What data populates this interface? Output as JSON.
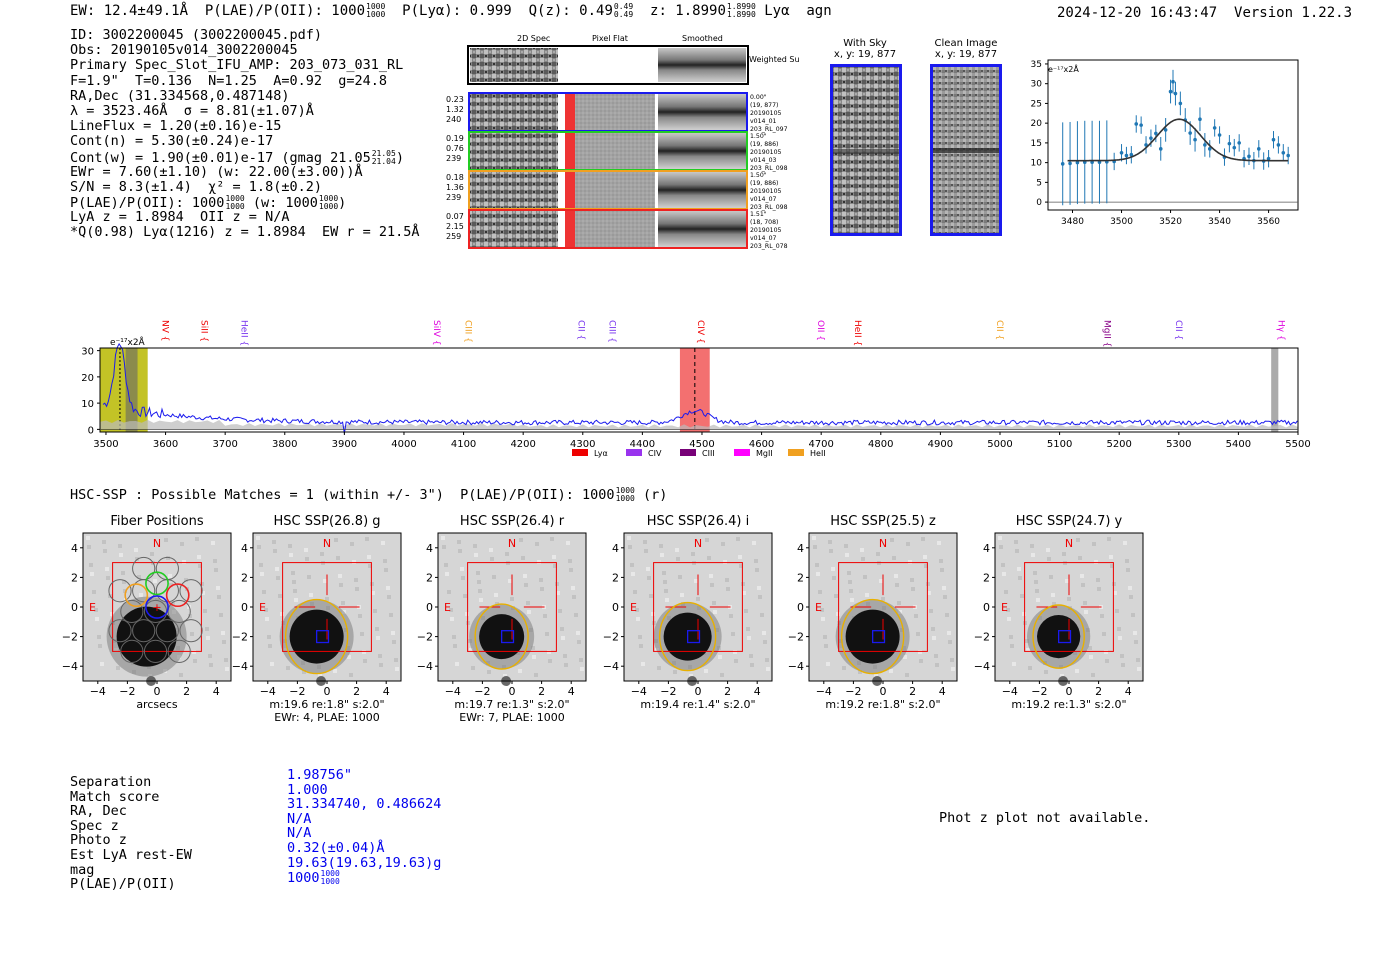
{
  "header": {
    "ew": "EW: 12.4±49.1Å",
    "plae_label": "P(LAE)/P(OII): 1000",
    "plae_hi": "1000",
    "plae_lo": "1000",
    "plya": "P(Lyα): 0.999",
    "qz": "Q(z): 0.49",
    "qz_hi": "0.49",
    "qz_lo": "0.49",
    "z": "z: 1.8990",
    "z_hi": "1.8990",
    "z_lo": "1.8990",
    "line": "Lyα",
    "cls": "agn",
    "timestamp": "2024-12-20 16:43:47",
    "version": "Version 1.22.3"
  },
  "info": {
    "id": "ID: 3002200045 (3002200045.pdf)",
    "obs": "Obs: 20190105v014_3002200045",
    "primary": "Primary Spec_Slot_IFU_AMP: 203_073_031_RL",
    "fit": "F=1.9\"  T=0.136  N=1.25  A=0.92  g=24.8",
    "radec": "RA,Dec (31.334568,0.487148)",
    "lambda": "λ = 3523.46Å  σ = 8.81(±1.07)Å",
    "lineflux": "LineFlux = 1.20(±0.16)e-15",
    "contn": "Cont(n) = 5.30(±0.24)e-17",
    "contw": "Cont(w) = 1.90(±0.01)e-17 (gmag 21.05",
    "contw_hi": "21.05",
    "contw_lo": "21.04",
    "ewr": "EWr = 7.60(±1.10) (w: 22.00(±3.00))Å",
    "sn": "S/N = 8.3(±1.4)  χ² = 1.8(±0.2)",
    "plae": "P(LAE)/P(OII): 1000",
    "plae_hi": "1000",
    "plae_lo": "1000",
    "plae_w": "(w: 1000",
    "plae_w_hi": "1000",
    "plae_w_lo": "1000",
    "lyaz": "LyA z = 1.8984  OII z = N/A",
    "qline": "*Q(0.98) Lyα(1216) z = 1.8984  EW r = 21.5Å"
  },
  "cutouts": {
    "col_headers": [
      "2D Spec",
      "Pixel Flat",
      "Smoothed"
    ],
    "weighted_sum": "Weighted Sum",
    "rows": [
      {
        "left": [
          "0.23",
          "1.32",
          "240"
        ],
        "right": [
          "0.00\"",
          "(19, 877)",
          "20190105",
          "v014_01",
          "203_RL_097"
        ],
        "color": "#1a1aee"
      },
      {
        "left": [
          "0.19",
          "0.76",
          "239"
        ],
        "right": [
          "1.50\"",
          "(19, 886)",
          "20190105",
          "v014_03",
          "203_RL_098"
        ],
        "color": "#22cc22"
      },
      {
        "left": [
          "0.18",
          "1.36",
          "239"
        ],
        "right": [
          "1.50\"",
          "(19, 886)",
          "20190105",
          "v014_07",
          "203_RL_098"
        ],
        "color": "#f0a020"
      },
      {
        "left": [
          "0.07",
          "2.15",
          "259"
        ],
        "right": [
          "1.51\"",
          "(18, 708)",
          "20190105",
          "v014_07",
          "203_RL_078"
        ],
        "color": "#ee2222"
      }
    ],
    "with_sky": "With Sky",
    "with_sky_xy": "x, y: 19, 877",
    "clean": "Clean Image",
    "clean_xy": "x, y: 19, 877"
  },
  "line_fit": {
    "unit": "e⁻¹⁷x2Å",
    "xlim": [
      3470,
      3572
    ],
    "ylim": [
      -2,
      36
    ],
    "xticks": [
      3480,
      3500,
      3520,
      3540,
      3560
    ],
    "yticks": [
      0,
      5,
      10,
      15,
      20,
      25,
      30,
      35
    ]
  },
  "chart_data": [
    {
      "type": "scatter",
      "x": [
        3476,
        3479,
        3482,
        3485,
        3488,
        3491,
        3494,
        3497,
        3500,
        3502,
        3504,
        3506,
        3508,
        3510,
        3512,
        3514,
        3516,
        3518,
        3520,
        3521,
        3522,
        3524,
        3526,
        3528,
        3530,
        3532,
        3534,
        3536,
        3538,
        3540,
        3542,
        3544,
        3546,
        3548,
        3550,
        3552,
        3554,
        3556,
        3558,
        3560,
        3562,
        3564,
        3566,
        3568
      ],
      "values": [
        9.7,
        9.8,
        10.0,
        10.1,
        10.1,
        10.1,
        10.2,
        10.3,
        12.5,
        11.8,
        12.0,
        19.8,
        19.5,
        14.5,
        16.2,
        17.4,
        13.5,
        18.3,
        28.0,
        30.5,
        27.5,
        25.0,
        20.8,
        17.5,
        15.8,
        21.0,
        14.5,
        13.5,
        18.8,
        17.0,
        11.4,
        14.8,
        13.8,
        15.0,
        11.0,
        11.6,
        10.5,
        13.5,
        10.4,
        11.0,
        15.8,
        14.5,
        12.5,
        11.8
      ],
      "model": {
        "continuum": 10.5,
        "center": 3523.46,
        "sigma": 8.81,
        "peak": 21.0
      },
      "xlim": [
        3470,
        3572
      ],
      "ylim": [
        -2,
        36
      ]
    },
    {
      "type": "line",
      "x_range": [
        3490,
        5500
      ],
      "xlim": [
        3490,
        5500
      ],
      "ylim": [
        -1,
        31
      ],
      "unit": "e⁻¹⁷x2Å",
      "xticks": [
        3500,
        3600,
        3700,
        3800,
        3900,
        4000,
        4100,
        4200,
        4300,
        4400,
        4500,
        4600,
        4700,
        4800,
        4900,
        5000,
        5100,
        5200,
        5300,
        5400,
        5500
      ],
      "yticks": [
        0,
        10,
        20,
        30
      ],
      "line_markers": [
        {
          "name": "NV",
          "x": 3590,
          "color": "#ee0000"
        },
        {
          "name": "SiII",
          "x": 3655,
          "color": "#ee0000"
        },
        {
          "name": "HeII",
          "x": 3722,
          "color": "#7733ee"
        },
        {
          "name": "SiIV",
          "x": 4045,
          "color": "#dd00dd"
        },
        {
          "name": "CIII",
          "x": 4098,
          "color": "#f0a020"
        },
        {
          "name": "CII",
          "x": 4288,
          "color": "#7733ee"
        },
        {
          "name": "CIII",
          "x": 4340,
          "color": "#7733ee"
        },
        {
          "name": "CIV",
          "x": 4488,
          "color": "#ee0000"
        },
        {
          "name": "OII",
          "x": 4690,
          "color": "#dd00dd"
        },
        {
          "name": "HeII",
          "x": 4752,
          "color": "#ee0000"
        },
        {
          "name": "CII",
          "x": 4990,
          "color": "#f0a020"
        },
        {
          "name": "MgII",
          "x": 5170,
          "color": "#880088"
        },
        {
          "name": "CII",
          "x": 5290,
          "color": "#7733ee"
        },
        {
          "name": "Hγ",
          "x": 5462,
          "color": "#dd00dd"
        }
      ],
      "legend": [
        {
          "name": "Lyα",
          "color": "#ee0000"
        },
        {
          "name": "CIV",
          "color": "#9933ee"
        },
        {
          "name": "CIII",
          "color": "#770077"
        },
        {
          "name": "MgII",
          "color": "#ff00ff"
        },
        {
          "name": "HeII",
          "color": "#f0a020"
        }
      ],
      "highlights": [
        {
          "range": [
            3490,
            3570
          ],
          "color": "#b8b800"
        },
        {
          "range": [
            4463,
            4513
          ],
          "color": "#ee3333"
        },
        {
          "range": [
            5455,
            5467
          ],
          "color": "#888888"
        }
      ]
    }
  ],
  "hsc": {
    "title": "HSC-SSP : Possible Matches = 1 (within +/- 3\")  P(LAE)/P(OII): 1000",
    "title_hi": "1000",
    "title_lo": "1000",
    "title_tail": "(r)",
    "stamps": [
      {
        "title": "Fiber Positions",
        "cap1": "arcsecs",
        "cap2": ""
      },
      {
        "title": "HSC SSP(26.8) g",
        "cap1": "m:19.6  re:1.8\"  s:2.0\"",
        "cap2": "EWr: 4, PLAE: 1000"
      },
      {
        "title": "HSC SSP(26.4) r",
        "cap1": "m:19.7  re:1.3\"  s:2.0\"",
        "cap2": "EWr: 7, PLAE: 1000"
      },
      {
        "title": "HSC SSP(26.4) i",
        "cap1": "m:19.4  re:1.4\"  s:2.0\"",
        "cap2": ""
      },
      {
        "title": "HSC SSP(25.5) z",
        "cap1": "m:19.2  re:1.8\"  s:2.0\"",
        "cap2": ""
      },
      {
        "title": "HSC SSP(24.7) y",
        "cap1": "m:19.2  re:1.3\"  s:2.0\"",
        "cap2": ""
      }
    ],
    "north": "N",
    "east": "E",
    "ticks": [
      "−4",
      "−2",
      "0",
      "2",
      "4"
    ],
    "yticks": [
      "4",
      "2",
      "0",
      "−2",
      "−4"
    ]
  },
  "match": {
    "labels": [
      "Separation",
      "Match score",
      "RA, Dec",
      "Spec z",
      "Photo z",
      "Est LyA rest-EW",
      "mag",
      "P(LAE)/P(OII)"
    ],
    "values": [
      "1.98756\"",
      "1.000",
      "31.334740, 0.486624",
      "N/A",
      "N/A",
      "0.32(±0.04)Å",
      "19.63(19.63,19.63)g",
      "1000"
    ],
    "plae_hi": "1000",
    "plae_lo": "1000"
  },
  "photz_msg": "Phot z plot not available."
}
